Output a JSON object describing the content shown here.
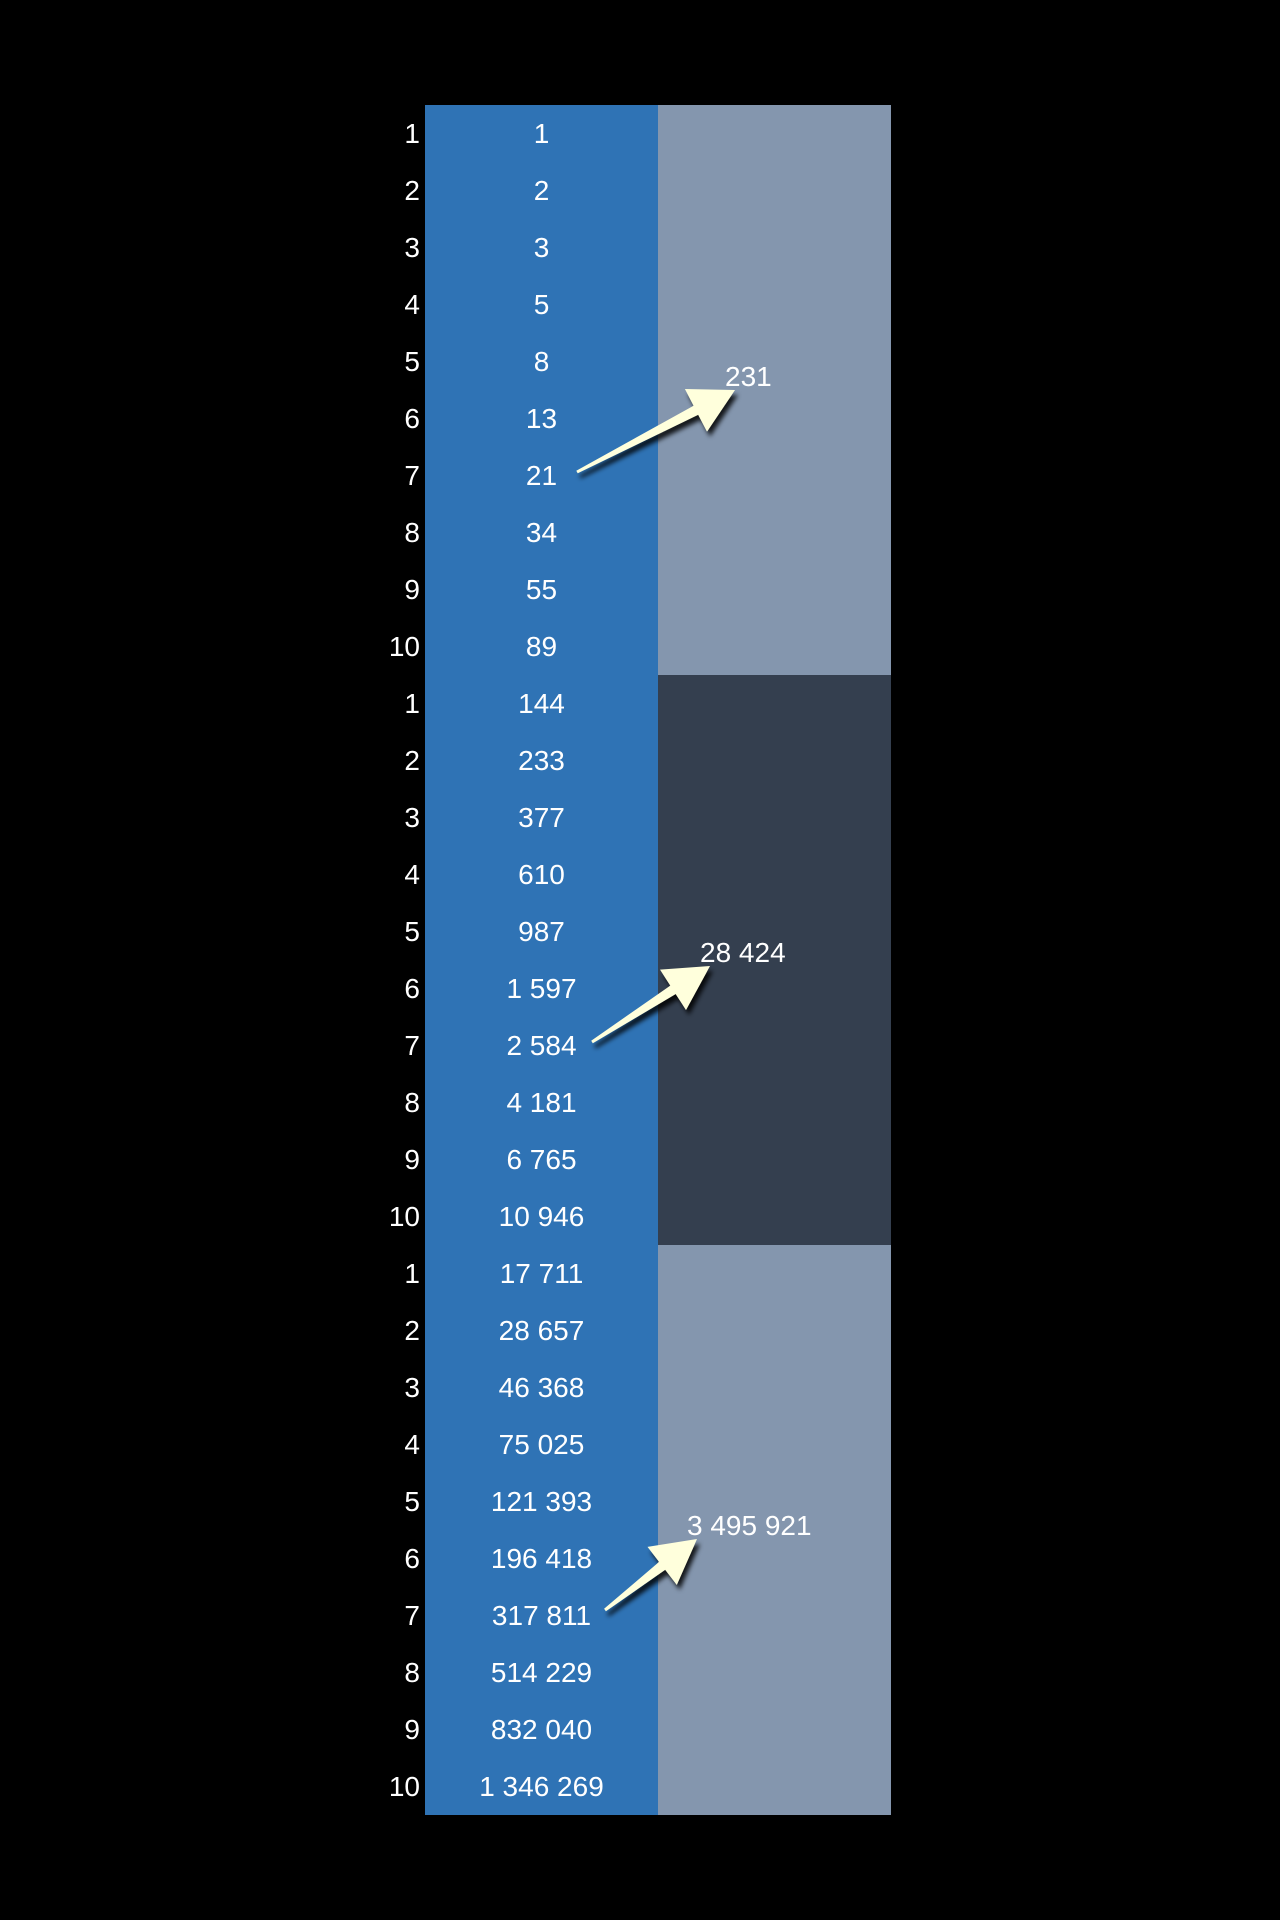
{
  "colors": {
    "background": "#000000",
    "sequence_column": "#2f73b5",
    "group_light": "#8496ae",
    "group_dark": "#343f4f",
    "arrow_fill": "#ffffdc",
    "text": "#ffffff"
  },
  "groups": [
    {
      "shade": "light",
      "sum": "231",
      "rows": [
        {
          "index": "1",
          "value": "1"
        },
        {
          "index": "2",
          "value": "2"
        },
        {
          "index": "3",
          "value": "3"
        },
        {
          "index": "4",
          "value": "5"
        },
        {
          "index": "5",
          "value": "8"
        },
        {
          "index": "6",
          "value": "13"
        },
        {
          "index": "7",
          "value": "21"
        },
        {
          "index": "8",
          "value": "34"
        },
        {
          "index": "9",
          "value": "55"
        },
        {
          "index": "10",
          "value": "89"
        }
      ]
    },
    {
      "shade": "dark",
      "sum": "28 424",
      "rows": [
        {
          "index": "1",
          "value": "144"
        },
        {
          "index": "2",
          "value": "233"
        },
        {
          "index": "3",
          "value": "377"
        },
        {
          "index": "4",
          "value": "610"
        },
        {
          "index": "5",
          "value": "987"
        },
        {
          "index": "6",
          "value": "1 597"
        },
        {
          "index": "7",
          "value": "2 584"
        },
        {
          "index": "8",
          "value": "4 181"
        },
        {
          "index": "9",
          "value": "6 765"
        },
        {
          "index": "10",
          "value": "10 946"
        }
      ]
    },
    {
      "shade": "light",
      "sum": "3 495 921",
      "rows": [
        {
          "index": "1",
          "value": "17 711"
        },
        {
          "index": "2",
          "value": "28 657"
        },
        {
          "index": "3",
          "value": "46 368"
        },
        {
          "index": "4",
          "value": "75 025"
        },
        {
          "index": "5",
          "value": "121 393"
        },
        {
          "index": "6",
          "value": "196 418"
        },
        {
          "index": "7",
          "value": "317 811"
        },
        {
          "index": "8",
          "value": "514 229"
        },
        {
          "index": "9",
          "value": "832 040"
        },
        {
          "index": "10",
          "value": "1 346 269"
        }
      ]
    }
  ]
}
